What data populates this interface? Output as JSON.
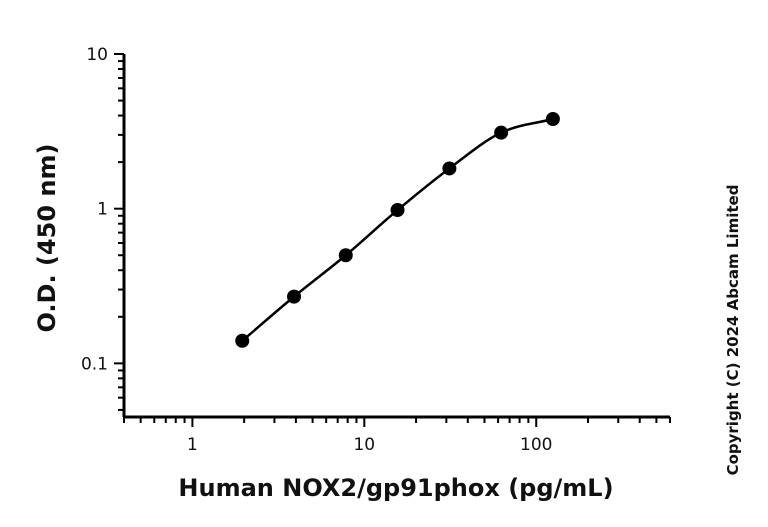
{
  "chart_data": {
    "type": "scatter",
    "xlabel": "Human NOX2/gp91phox (pg/mL)",
    "ylabel": "O.D. (450 nm)",
    "x_scale": "log",
    "y_scale": "log",
    "xlim": [
      0.4,
      600
    ],
    "ylim": [
      0.045,
      10
    ],
    "x_ticks": [
      1,
      10,
      100
    ],
    "x_tick_labels": [
      "1",
      "10",
      "100"
    ],
    "y_ticks": [
      0.1,
      1,
      10
    ],
    "y_tick_labels": [
      "0.1",
      "1",
      "10"
    ],
    "grid": false,
    "legend": "none",
    "fit_curve": true,
    "series": [
      {
        "x": [
          1.95,
          3.9,
          7.8,
          15.6,
          31.25,
          62.5,
          125
        ],
        "y": [
          0.14,
          0.27,
          0.5,
          0.98,
          1.82,
          3.1,
          3.8
        ]
      }
    ],
    "marker_color": "#000000",
    "line_color": "#000000"
  },
  "copyright": "Copyright (C) 2024 Abcam Limited"
}
